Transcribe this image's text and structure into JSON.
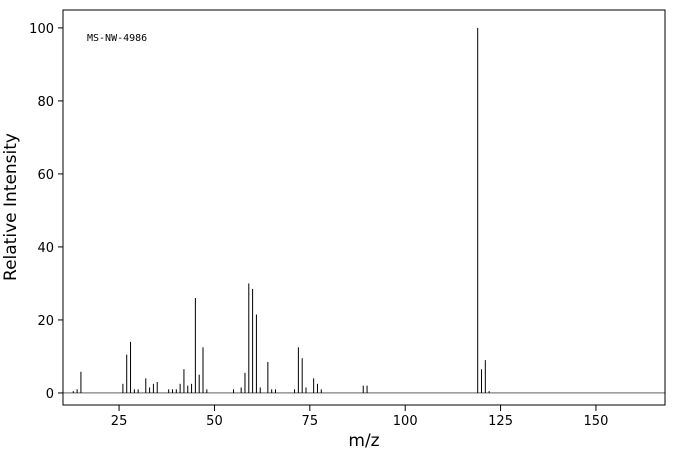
{
  "chart_data": {
    "type": "stem",
    "annotation": "MS-NW-4986",
    "x_label": "m/z",
    "y_label": "Relative Intensity",
    "x": [
      13,
      14,
      15,
      26,
      27,
      28,
      29,
      30,
      32,
      33,
      34,
      35,
      38,
      39,
      40,
      41,
      42,
      43,
      44,
      45,
      46,
      47,
      48,
      55,
      57,
      58,
      59,
      60,
      61,
      62,
      64,
      65,
      66,
      71,
      72,
      73,
      74,
      76,
      77,
      78,
      89,
      90,
      119,
      120,
      121,
      122
    ],
    "values": [
      0.5,
      1,
      5.8,
      2.5,
      10.5,
      14,
      1,
      1,
      4,
      1.5,
      2.5,
      3,
      1,
      1,
      1,
      2.5,
      6.5,
      2,
      2.5,
      26,
      5,
      12.5,
      1,
      1,
      1.5,
      5.5,
      30,
      28.5,
      21.5,
      1.5,
      8.5,
      1,
      1,
      1,
      12.5,
      9.5,
      1.5,
      4,
      2.5,
      1,
      2,
      2,
      100,
      6.5,
      9,
      0.5
    ],
    "color": "#000000",
    "xlim": [
      10.3,
      168.1
    ],
    "ylim": [
      -3.3,
      104.9
    ],
    "xticks": [
      25,
      50,
      75,
      100,
      125,
      150
    ],
    "yticks": [
      0,
      20,
      40,
      60,
      80,
      100
    ]
  }
}
